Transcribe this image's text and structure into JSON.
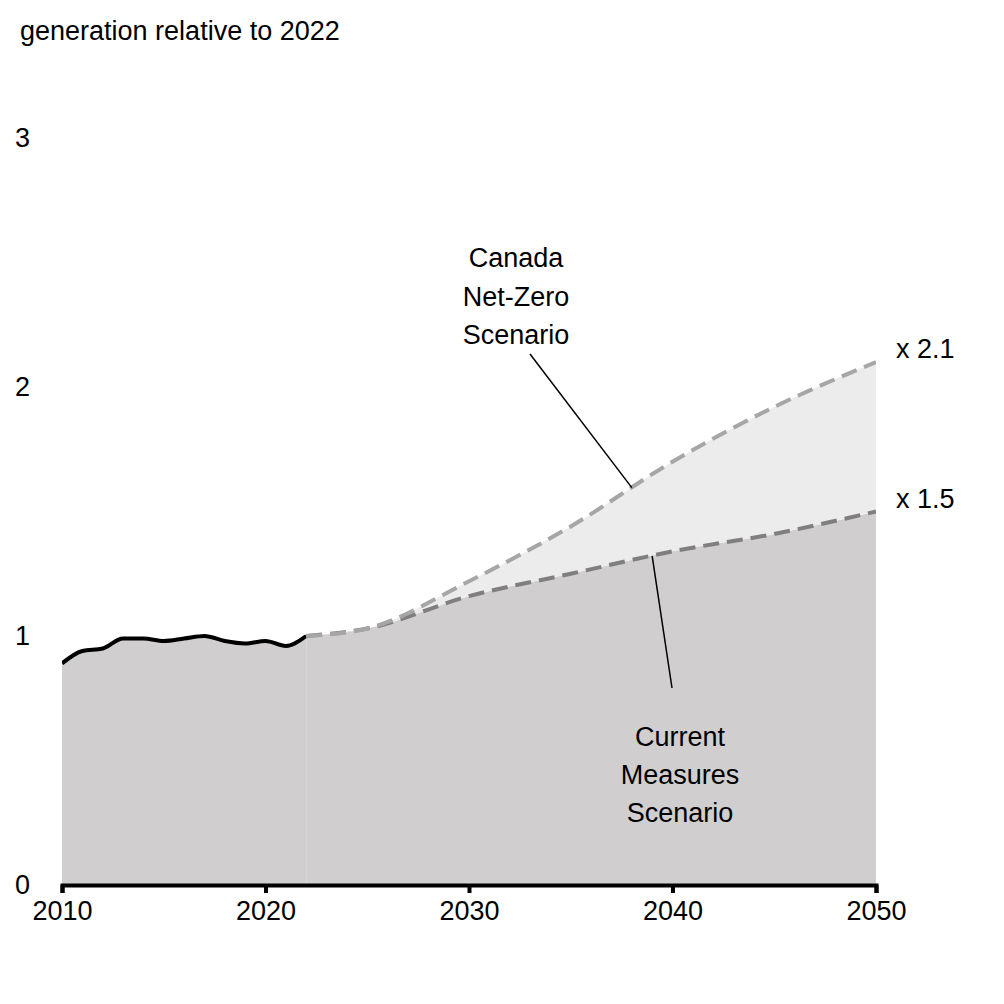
{
  "chart_data": {
    "type": "area",
    "y_label": "generation relative to 2022",
    "x": [
      2010,
      2011,
      2012,
      2013,
      2014,
      2015,
      2016,
      2017,
      2018,
      2019,
      2020,
      2021,
      2022,
      2025,
      2030,
      2035,
      2040,
      2045,
      2050
    ],
    "series": [
      {
        "color": "#000000",
        "line_style": "solid",
        "values": [
          0.89,
          0.94,
          0.95,
          0.99,
          0.99,
          0.98,
          0.99,
          1.0,
          0.98,
          0.97,
          0.98,
          0.96,
          1.0,
          null,
          null,
          null,
          null,
          null,
          null
        ]
      },
      {
        "name": "Current Measures Scenario",
        "color": "#7f7f7f",
        "line_style": "dashed",
        "end_label": "x 1.5",
        "values": [
          null,
          null,
          null,
          null,
          null,
          null,
          null,
          null,
          null,
          null,
          null,
          null,
          1.0,
          1.03,
          1.16,
          1.25,
          1.34,
          1.41,
          1.5
        ]
      },
      {
        "name": "Canada Net-Zero Scenario",
        "color": "#a6a6a6",
        "line_style": "dashed",
        "end_label": "x 2.1",
        "values": [
          null,
          null,
          null,
          null,
          null,
          null,
          null,
          null,
          null,
          null,
          null,
          null,
          1.0,
          1.03,
          1.22,
          1.44,
          1.7,
          1.92,
          2.1
        ]
      }
    ],
    "xlim": [
      2010,
      2050
    ],
    "xticks": [
      2010,
      2020,
      2030,
      2040,
      2050
    ],
    "ylim": [
      0,
      3
    ],
    "yticks": [
      0,
      1,
      2,
      3
    ],
    "grid": false
  }
}
